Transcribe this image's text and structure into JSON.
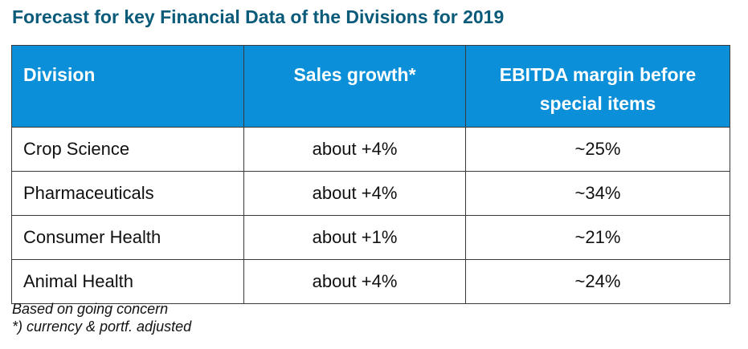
{
  "title": "Forecast for key Financial Data of the Divisions for 2019",
  "table": {
    "headers": [
      "Division",
      "Sales growth*",
      "EBITDA margin before special items"
    ],
    "rows": [
      [
        "Crop Science",
        "about +4%",
        "~25%"
      ],
      [
        "Pharmaceuticals",
        "about +4%",
        "~34%"
      ],
      [
        "Consumer Health",
        "about +1%",
        "~21%"
      ],
      [
        "Animal Health",
        "about +4%",
        "~24%"
      ]
    ]
  },
  "footnotes": [
    "Based on going concern",
    "*) currency & portf. adjusted"
  ],
  "colors": {
    "title": "#0a5a7a",
    "header_bg": "#0a8fd8",
    "header_text": "#ffffff",
    "border": "#3a3a3a"
  }
}
